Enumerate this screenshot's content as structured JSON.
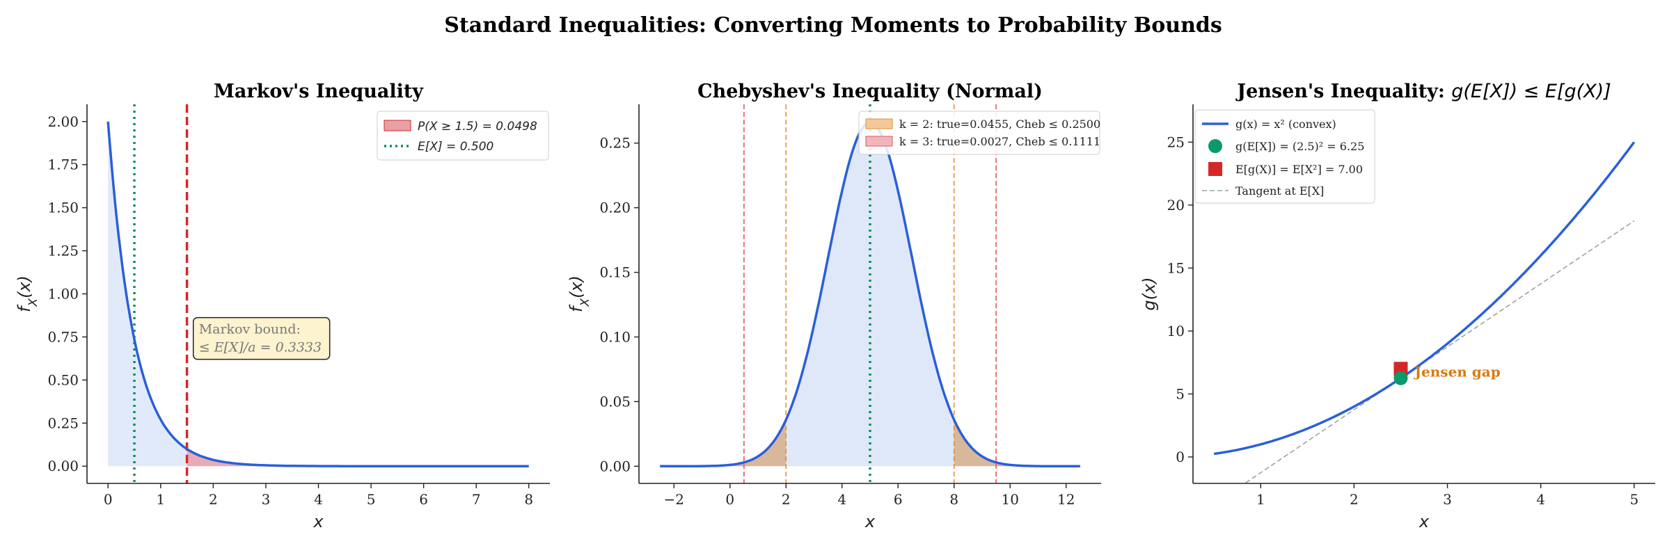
{
  "suptitle": "Standard Inequalities: Converting Moments to Probability Bounds",
  "chart_data": [
    {
      "type": "line",
      "title": "Markov's Inequality",
      "xlabel": "x",
      "ylabel": "f_X(x)",
      "xlim": [
        -0.4,
        8.4
      ],
      "ylim": [
        -0.1,
        2.1
      ],
      "xticks": [
        0,
        1,
        2,
        3,
        4,
        5,
        6,
        7,
        8
      ],
      "xtick_labels": [
        "0",
        "1",
        "2",
        "3",
        "4",
        "5",
        "6",
        "7",
        "8"
      ],
      "yticks": [
        0,
        0.25,
        0.5,
        0.75,
        1.0,
        1.25,
        1.5,
        1.75,
        2.0
      ],
      "ytick_labels": [
        "0.00",
        "0.25",
        "0.50",
        "0.75",
        "1.00",
        "1.25",
        "1.50",
        "1.75",
        "2.00"
      ],
      "series": [
        {
          "kind": "exponential_pdf",
          "rate": 2,
          "x_range": [
            0,
            8
          ],
          "color": "#2a5fd9"
        }
      ],
      "shaded_regions": [
        {
          "from": 0,
          "to": 8,
          "color": "#c9d8f5"
        },
        {
          "from": 1.5,
          "to": 8,
          "color": "#e8a0a8",
          "legend": "P(X ≥ 1.5) = 0.0498"
        }
      ],
      "vlines": [
        {
          "x": 0.5,
          "style": "dotted",
          "color": "#0a8f5c",
          "legend": "E[X] = 0.500"
        },
        {
          "x": 1.5,
          "style": "dashed",
          "color": "#d62728"
        }
      ],
      "annotation": {
        "line1": "Markov bound:",
        "line2": "≤ E[X]/a = 0.3333",
        "x": 1.7,
        "y": 0.62
      },
      "legend_position": "upper-right"
    },
    {
      "type": "line",
      "title": "Chebyshev's Inequality (Normal)",
      "xlabel": "x",
      "ylabel": "f_X(x)",
      "xlim": [
        -3.25,
        13.25
      ],
      "ylim": [
        -0.0133,
        0.28
      ],
      "xticks": [
        -2,
        0,
        2,
        4,
        6,
        8,
        10,
        12
      ],
      "xtick_labels": [
        "−2",
        "0",
        "2",
        "4",
        "6",
        "8",
        "10",
        "12"
      ],
      "yticks": [
        0,
        0.05,
        0.1,
        0.15,
        0.2,
        0.25
      ],
      "ytick_labels": [
        "0.00",
        "0.05",
        "0.10",
        "0.15",
        "0.20",
        "0.25"
      ],
      "series": [
        {
          "kind": "normal_pdf",
          "mean": 5,
          "sd": 1.5,
          "x_range": [
            -2.5,
            12.5
          ],
          "color": "#2a5fd9"
        }
      ],
      "shaded_regions": [
        {
          "from": 2,
          "to": 8,
          "color": "#c9d8f5"
        },
        {
          "tails_beyond": [
            2,
            8
          ],
          "color": "#d4b08f",
          "legend": "k = 2: true=0.0455, Cheb ≤ 0.2500"
        },
        {
          "tails_beyond": [
            0.5,
            9.5
          ],
          "color": "#e8a0a8",
          "legend": "k = 3: true=0.0027, Cheb ≤ 0.1111"
        }
      ],
      "vlines": [
        {
          "x": 0.5,
          "style": "dashed",
          "color": "#e15759"
        },
        {
          "x": 2,
          "style": "dashed",
          "color": "#e0913a"
        },
        {
          "x": 5,
          "style": "dotted",
          "color": "#0a8f5c"
        },
        {
          "x": 8,
          "style": "dashed",
          "color": "#e0913a"
        },
        {
          "x": 9.5,
          "style": "dashed",
          "color": "#e15759"
        }
      ],
      "legend_position": "upper-right"
    },
    {
      "type": "line",
      "title_text": "Jensen's Inequality: ",
      "title_math": "g(E[X]) ≤ E[g(X)]",
      "xlabel": "x",
      "ylabel": "g(x)",
      "xlim": [
        0.275,
        5.225
      ],
      "ylim": [
        -2.1,
        28
      ],
      "xticks": [
        1,
        2,
        3,
        4,
        5
      ],
      "xtick_labels": [
        "1",
        "2",
        "3",
        "4",
        "5"
      ],
      "yticks": [
        0,
        5,
        10,
        15,
        20,
        25
      ],
      "ytick_labels": [
        "0",
        "5",
        "10",
        "15",
        "20",
        "25"
      ],
      "series": [
        {
          "kind": "square",
          "x_range": [
            0.5,
            5
          ],
          "color": "#2a5fd9",
          "legend": "g(x) = x² (convex)"
        },
        {
          "kind": "tangent",
          "at": 2.5,
          "x_range": [
            0.5,
            5
          ],
          "color": "#a0a0a0",
          "legend": "Tangent at E[X]"
        }
      ],
      "points": [
        {
          "x": 2.5,
          "y": 6.25,
          "marker": "circle",
          "color": "#0a9a6a",
          "legend": "g(E[X]) = (2.5)² = 6.25"
        },
        {
          "x": 2.5,
          "y": 7.0,
          "marker": "square",
          "color": "#d62728",
          "legend": "E[g(X)] = E[X²] = 7.00"
        }
      ],
      "annotation": {
        "text": "Jensen gap",
        "x": 2.65,
        "y": 6.7,
        "color": "#d97a12"
      },
      "legend_position": "upper-left"
    }
  ]
}
